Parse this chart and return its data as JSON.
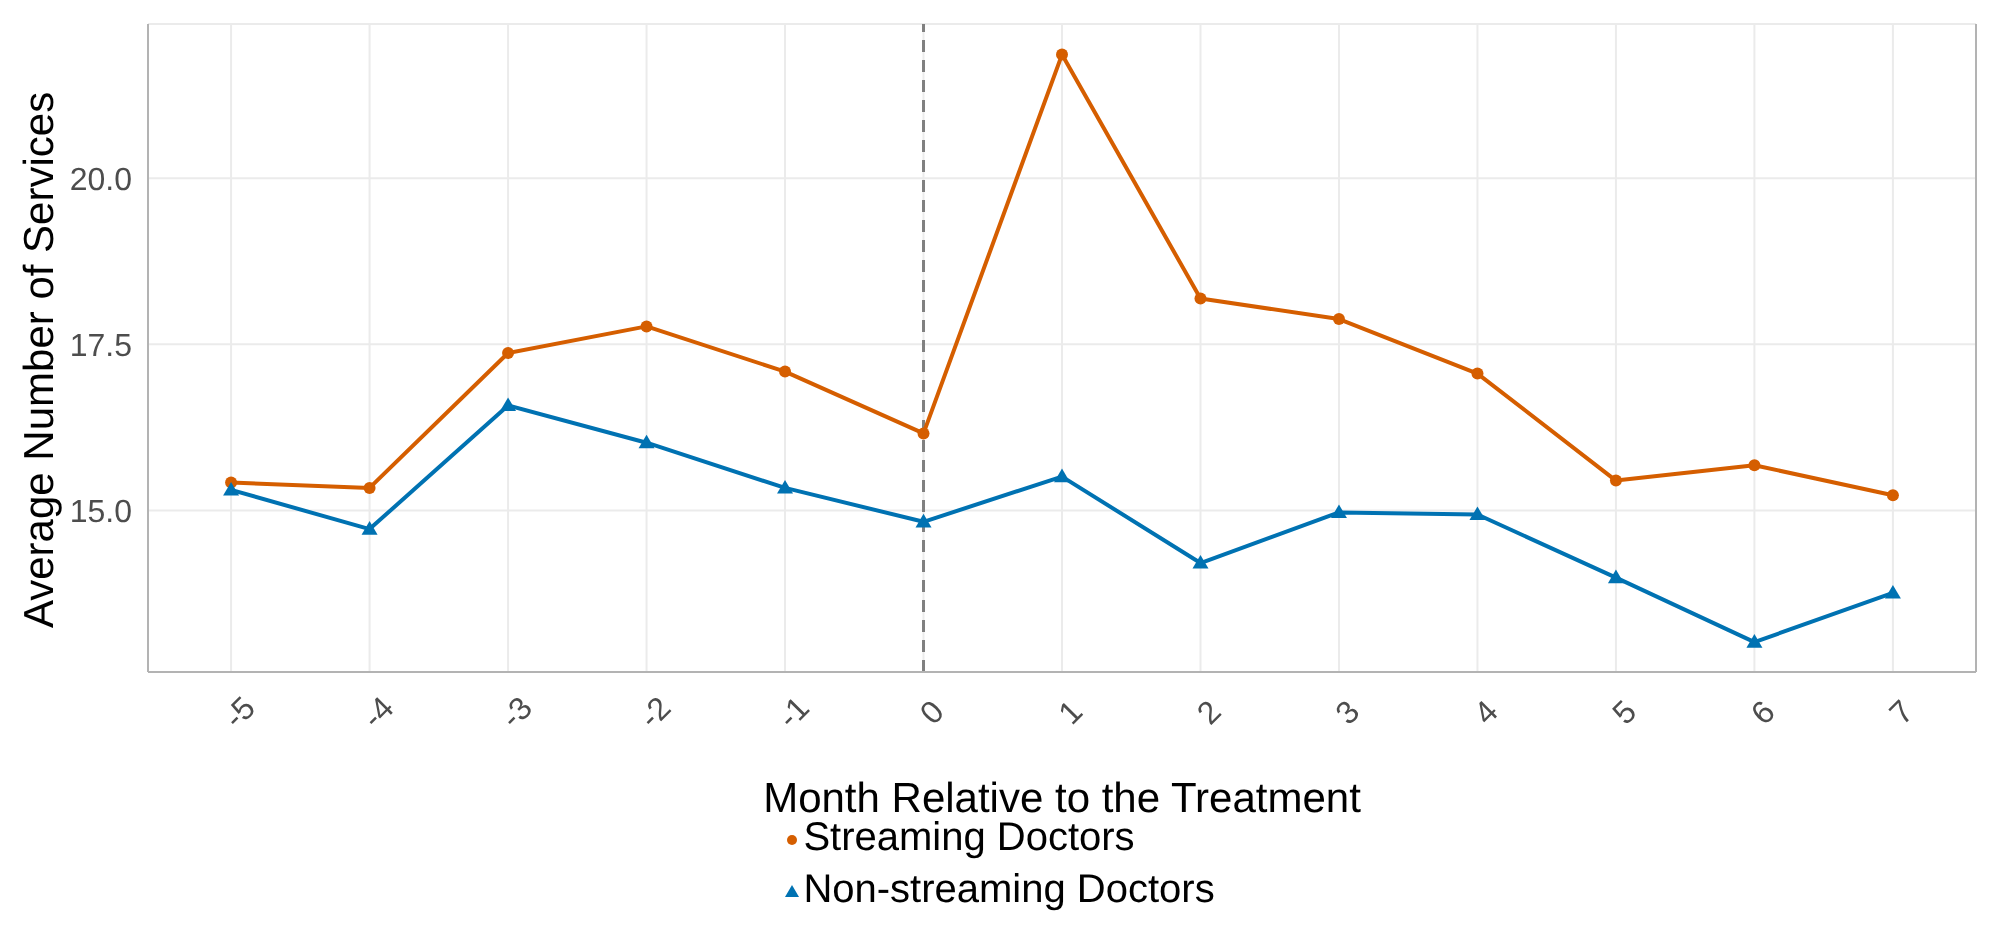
{
  "chart_data": {
    "type": "line",
    "xlabel": "Month Relative to the Treatment",
    "ylabel": "Average Number of Services",
    "x": [
      -5,
      -4,
      -3,
      -2,
      -1,
      0,
      1,
      2,
      3,
      4,
      5,
      6,
      7
    ],
    "series": [
      {
        "name": "Streaming Doctors",
        "color": "#d55e00",
        "marker": "circle",
        "values": [
          15.42,
          15.34,
          17.37,
          17.77,
          17.09,
          16.16,
          21.86,
          18.19,
          17.88,
          17.06,
          15.45,
          15.68,
          15.23
        ]
      },
      {
        "name": "Non-streaming Doctors",
        "color": "#0072b2",
        "marker": "triangle",
        "values": [
          15.31,
          14.72,
          16.58,
          16.02,
          15.34,
          14.83,
          15.51,
          14.21,
          14.97,
          14.94,
          13.99,
          13.02,
          13.76
        ]
      }
    ],
    "xlim": [
      -5.6,
      7.6
    ],
    "xticks": [
      -5,
      -4,
      -3,
      -2,
      -1,
      0,
      1,
      2,
      3,
      4,
      5,
      6,
      7
    ],
    "ylim": [
      12.57,
      22.32
    ],
    "yticks": [
      {
        "value": 15,
        "label": "15.0"
      },
      17.5,
      {
        "value": 20,
        "label": "20.0"
      }
    ],
    "ref_lines": [
      {
        "axis": "x",
        "value": 0,
        "color": "#808080",
        "line_style": "dashed"
      }
    ],
    "grid": true,
    "legend": "bottom",
    "line_style": "solid"
  }
}
